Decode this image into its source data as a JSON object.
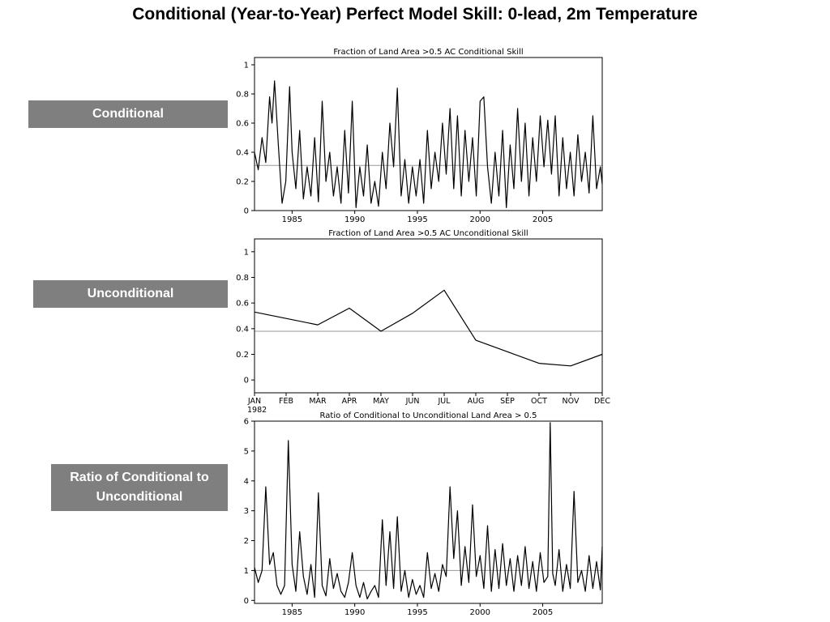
{
  "page": {
    "title": "Conditional (Year-to-Year) Perfect Model Skill: 0-lead, 2m Temperature"
  },
  "labels": {
    "conditional": "Conditional",
    "unconditional": "Unconditional",
    "ratio": "Ratio of Conditional to Unconditional"
  },
  "chart_data": [
    {
      "type": "line",
      "title": "Fraction of Land Area >0.5 AC Conditional Skill",
      "xlabel": "",
      "ylabel": "",
      "xlim": [
        1982.0,
        2009.75
      ],
      "ylim": [
        0,
        1.05
      ],
      "xticks": [
        1985,
        1990,
        1995,
        2000,
        2005
      ],
      "xtick_labels": [
        "1985",
        "1990",
        "1995",
        "2000",
        "2005"
      ],
      "yticks": [
        0,
        0.2,
        0.4,
        0.6,
        0.8,
        1
      ],
      "ytick_labels": [
        "0",
        "0.2",
        "0.4",
        "0.6",
        "0.8",
        "1"
      ],
      "reference_line": 0.31,
      "grid": false,
      "series": [
        {
          "x": [
            1982.0,
            1982.3,
            1982.6,
            1982.9,
            1983.2,
            1983.4,
            1983.6,
            1983.9,
            1984.2,
            1984.5,
            1984.8,
            1985.0,
            1985.3,
            1985.6,
            1985.9,
            1986.2,
            1986.5,
            1986.8,
            1987.1,
            1987.4,
            1987.7,
            1988.0,
            1988.3,
            1988.6,
            1988.9,
            1989.2,
            1989.5,
            1989.8,
            1990.1,
            1990.4,
            1990.7,
            1991.0,
            1991.3,
            1991.6,
            1991.9,
            1992.2,
            1992.5,
            1992.8,
            1993.1,
            1993.4,
            1993.7,
            1994.0,
            1994.3,
            1994.6,
            1994.9,
            1995.2,
            1995.5,
            1995.8,
            1996.1,
            1996.4,
            1996.7,
            1997.0,
            1997.3,
            1997.6,
            1997.9,
            1998.2,
            1998.5,
            1998.8,
            1999.1,
            1999.4,
            1999.7,
            2000.0,
            2000.3,
            2000.6,
            2000.9,
            2001.2,
            2001.5,
            2001.8,
            2002.1,
            2002.4,
            2002.7,
            2003.0,
            2003.3,
            2003.6,
            2003.9,
            2004.2,
            2004.5,
            2004.8,
            2005.1,
            2005.4,
            2005.7,
            2006.0,
            2006.3,
            2006.6,
            2006.9,
            2007.2,
            2007.5,
            2007.8,
            2008.1,
            2008.4,
            2008.7,
            2009.0,
            2009.3,
            2009.6,
            2009.75
          ],
          "y": [
            0.4,
            0.28,
            0.5,
            0.33,
            0.78,
            0.6,
            0.89,
            0.45,
            0.05,
            0.2,
            0.85,
            0.4,
            0.15,
            0.55,
            0.08,
            0.3,
            0.1,
            0.5,
            0.06,
            0.75,
            0.2,
            0.4,
            0.1,
            0.3,
            0.05,
            0.55,
            0.12,
            0.75,
            0.02,
            0.3,
            0.1,
            0.45,
            0.05,
            0.2,
            0.03,
            0.4,
            0.15,
            0.6,
            0.3,
            0.84,
            0.1,
            0.35,
            0.05,
            0.3,
            0.1,
            0.35,
            0.05,
            0.55,
            0.15,
            0.4,
            0.2,
            0.6,
            0.25,
            0.7,
            0.15,
            0.65,
            0.1,
            0.55,
            0.2,
            0.5,
            0.1,
            0.75,
            0.78,
            0.3,
            0.05,
            0.4,
            0.1,
            0.55,
            0.02,
            0.45,
            0.15,
            0.7,
            0.2,
            0.6,
            0.1,
            0.5,
            0.2,
            0.65,
            0.3,
            0.62,
            0.25,
            0.65,
            0.1,
            0.5,
            0.15,
            0.4,
            0.1,
            0.52,
            0.2,
            0.4,
            0.12,
            0.65,
            0.15,
            0.3,
            0.18
          ]
        }
      ]
    },
    {
      "type": "line",
      "title": "Fraction of Land Area >0.5 AC Unconditional Skill",
      "xlabel": "",
      "ylabel": "",
      "categories": [
        "JAN",
        "FEB",
        "MAR",
        "APR",
        "MAY",
        "JUN",
        "JUL",
        "AUG",
        "SEP",
        "OCT",
        "NOV",
        "DEC"
      ],
      "x_sub_label": "1982",
      "ylim": [
        -0.1,
        1.1
      ],
      "yticks": [
        0,
        0.2,
        0.4,
        0.6,
        0.8,
        1
      ],
      "ytick_labels": [
        "0",
        "0.2",
        "0.4",
        "0.6",
        "0.8",
        "1"
      ],
      "reference_line": 0.38,
      "grid": false,
      "series": [
        {
          "values": [
            0.53,
            0.48,
            0.43,
            0.56,
            0.38,
            0.52,
            0.7,
            0.31,
            0.22,
            0.13,
            0.11,
            0.2
          ]
        }
      ]
    },
    {
      "type": "line",
      "title": "Ratio of Conditional to Unconditional Land Area > 0.5",
      "xlabel": "",
      "ylabel": "",
      "xlim": [
        1982.0,
        2009.75
      ],
      "ylim": [
        -0.1,
        6
      ],
      "xticks": [
        1985,
        1990,
        1995,
        2000,
        2005
      ],
      "xtick_labels": [
        "1985",
        "1990",
        "1995",
        "2000",
        "2005"
      ],
      "yticks": [
        0,
        1,
        2,
        3,
        4,
        5,
        6
      ],
      "ytick_labels": [
        "0",
        "1",
        "2",
        "3",
        "4",
        "5",
        "6"
      ],
      "reference_line": 1.0,
      "grid": false,
      "series": [
        {
          "x": [
            1982.0,
            1982.3,
            1982.6,
            1982.9,
            1983.2,
            1983.5,
            1983.8,
            1984.1,
            1984.4,
            1984.7,
            1985.0,
            1985.3,
            1985.6,
            1985.9,
            1986.2,
            1986.5,
            1986.8,
            1987.1,
            1987.4,
            1987.7,
            1988.0,
            1988.3,
            1988.6,
            1988.9,
            1989.2,
            1989.5,
            1989.8,
            1990.1,
            1990.4,
            1990.7,
            1991.0,
            1991.3,
            1991.6,
            1991.9,
            1992.2,
            1992.5,
            1992.8,
            1993.1,
            1993.4,
            1993.7,
            1994.0,
            1994.3,
            1994.6,
            1994.9,
            1995.2,
            1995.5,
            1995.8,
            1996.1,
            1996.4,
            1996.7,
            1997.0,
            1997.3,
            1997.6,
            1997.9,
            1998.2,
            1998.5,
            1998.8,
            1999.1,
            1999.4,
            1999.7,
            2000.0,
            2000.3,
            2000.6,
            2000.9,
            2001.2,
            2001.5,
            2001.8,
            2002.1,
            2002.4,
            2002.7,
            2003.0,
            2003.3,
            2003.6,
            2003.9,
            2004.2,
            2004.5,
            2004.8,
            2005.1,
            2005.4,
            2005.6,
            2005.8,
            2006.0,
            2006.3,
            2006.6,
            2006.9,
            2007.2,
            2007.5,
            2007.8,
            2008.1,
            2008.4,
            2008.7,
            2009.0,
            2009.3,
            2009.6,
            2009.75
          ],
          "y": [
            1.1,
            0.6,
            1.0,
            3.8,
            1.2,
            1.6,
            0.5,
            0.2,
            0.5,
            5.35,
            1.2,
            0.3,
            2.3,
            0.8,
            0.2,
            1.2,
            0.1,
            3.6,
            0.5,
            0.15,
            1.4,
            0.4,
            0.9,
            0.3,
            0.1,
            0.6,
            1.6,
            0.5,
            0.1,
            0.6,
            0.05,
            0.3,
            0.5,
            0.1,
            2.7,
            0.5,
            2.3,
            0.4,
            2.8,
            0.3,
            1.0,
            0.1,
            0.7,
            0.2,
            0.5,
            0.1,
            1.6,
            0.4,
            0.9,
            0.3,
            1.2,
            0.8,
            3.8,
            1.4,
            3.0,
            0.5,
            1.8,
            0.6,
            3.2,
            0.8,
            1.5,
            0.4,
            2.5,
            0.3,
            1.7,
            0.4,
            1.9,
            0.5,
            1.4,
            0.3,
            1.5,
            0.5,
            1.8,
            0.4,
            1.3,
            0.3,
            1.6,
            0.6,
            0.8,
            5.95,
            0.9,
            0.5,
            1.7,
            0.3,
            1.2,
            0.4,
            3.65,
            0.6,
            1.0,
            0.3,
            1.5,
            0.4,
            1.3,
            0.35,
            1.8
          ]
        }
      ]
    }
  ]
}
